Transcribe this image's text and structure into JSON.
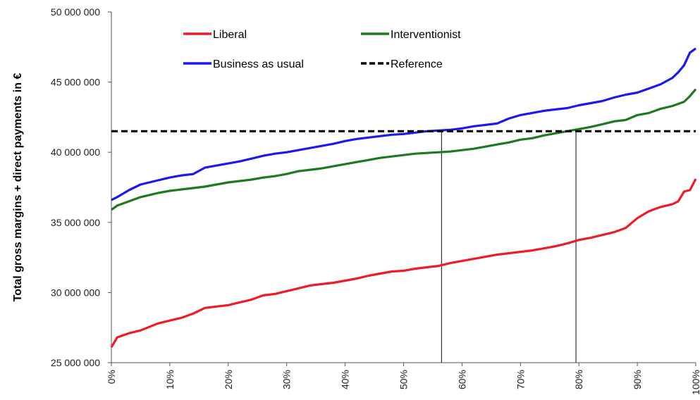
{
  "chart_data": {
    "type": "line",
    "ylabel": "Total gross margins + direct payments in  €",
    "xlabel": "",
    "xlim": [
      0,
      100
    ],
    "ylim": [
      25000000,
      50000000
    ],
    "x_ticks": [
      "0%",
      "10%",
      "20%",
      "30%",
      "40%",
      "50%",
      "60%",
      "70%",
      "80%",
      "90%",
      "100%"
    ],
    "y_ticks": [
      "25 000 000",
      "30 000 000",
      "35 000 000",
      "40 000 000",
      "45 000 000",
      "50 000 000"
    ],
    "legend": "top-left",
    "series": [
      {
        "name": "Liberal",
        "color": "#ee1c25",
        "x": [
          0,
          1,
          3,
          5,
          8,
          10,
          12,
          14,
          16,
          18,
          20,
          22,
          24,
          26,
          28,
          30,
          32,
          34,
          36,
          38,
          40,
          42,
          44,
          46,
          48,
          50,
          52,
          54,
          56,
          58,
          60,
          62,
          64,
          66,
          68,
          70,
          72,
          74,
          76,
          78,
          80,
          82,
          84,
          86,
          88,
          90,
          92,
          94,
          96,
          97,
          98,
          99,
          100
        ],
        "y": [
          26100000,
          26800000,
          27100000,
          27300000,
          27800000,
          28000000,
          28200000,
          28500000,
          28900000,
          29000000,
          29100000,
          29300000,
          29500000,
          29800000,
          29900000,
          30100000,
          30300000,
          30500000,
          30600000,
          30700000,
          30850000,
          31000000,
          31200000,
          31350000,
          31500000,
          31550000,
          31700000,
          31800000,
          31900000,
          32100000,
          32250000,
          32400000,
          32550000,
          32700000,
          32800000,
          32900000,
          33000000,
          33150000,
          33300000,
          33500000,
          33750000,
          33900000,
          34100000,
          34300000,
          34600000,
          35300000,
          35800000,
          36100000,
          36300000,
          36500000,
          37200000,
          37300000,
          38100000
        ]
      },
      {
        "name": "Interventionist",
        "color": "#1e7a1e",
        "x": [
          0,
          1,
          3,
          5,
          8,
          10,
          12,
          14,
          16,
          18,
          20,
          22,
          24,
          26,
          28,
          30,
          32,
          34,
          36,
          38,
          40,
          42,
          44,
          46,
          48,
          50,
          52,
          54,
          56,
          58,
          60,
          62,
          64,
          66,
          68,
          70,
          72,
          74,
          76,
          78,
          80,
          82,
          84,
          86,
          88,
          90,
          92,
          94,
          96,
          98,
          99,
          100
        ],
        "y": [
          35900000,
          36200000,
          36500000,
          36800000,
          37100000,
          37250000,
          37350000,
          37450000,
          37550000,
          37700000,
          37850000,
          37950000,
          38050000,
          38200000,
          38300000,
          38450000,
          38650000,
          38750000,
          38850000,
          39000000,
          39150000,
          39300000,
          39450000,
          39600000,
          39700000,
          39800000,
          39900000,
          39950000,
          40000000,
          40050000,
          40150000,
          40250000,
          40400000,
          40550000,
          40700000,
          40900000,
          41000000,
          41200000,
          41350000,
          41500000,
          41650000,
          41800000,
          42000000,
          42200000,
          42300000,
          42650000,
          42800000,
          43100000,
          43300000,
          43600000,
          44000000,
          44500000
        ]
      },
      {
        "name": "Business as usual",
        "color": "#1a1aee",
        "x": [
          0,
          1,
          3,
          5,
          8,
          10,
          12,
          14,
          16,
          18,
          20,
          22,
          24,
          26,
          28,
          30,
          32,
          34,
          36,
          38,
          40,
          42,
          44,
          46,
          48,
          50,
          52,
          54,
          56,
          58,
          60,
          62,
          64,
          66,
          68,
          70,
          72,
          74,
          76,
          78,
          80,
          82,
          84,
          86,
          88,
          90,
          92,
          94,
          96,
          97,
          98,
          99,
          100
        ],
        "y": [
          36600000,
          36800000,
          37300000,
          37700000,
          38000000,
          38200000,
          38350000,
          38450000,
          38900000,
          39050000,
          39200000,
          39350000,
          39550000,
          39750000,
          39900000,
          40000000,
          40150000,
          40300000,
          40450000,
          40600000,
          40800000,
          40950000,
          41050000,
          41150000,
          41250000,
          41300000,
          41400000,
          41500000,
          41550000,
          41600000,
          41700000,
          41850000,
          41950000,
          42050000,
          42400000,
          42650000,
          42800000,
          42950000,
          43050000,
          43150000,
          43350000,
          43500000,
          43650000,
          43900000,
          44100000,
          44250000,
          44550000,
          44850000,
          45300000,
          45700000,
          46200000,
          47100000,
          47400000
        ]
      },
      {
        "name": "Reference",
        "color": "#000000",
        "dashed": true,
        "x": [
          0,
          100
        ],
        "y": [
          41500000,
          41500000
        ]
      }
    ],
    "reference_lines_x": [
      56.5,
      79.5
    ]
  }
}
